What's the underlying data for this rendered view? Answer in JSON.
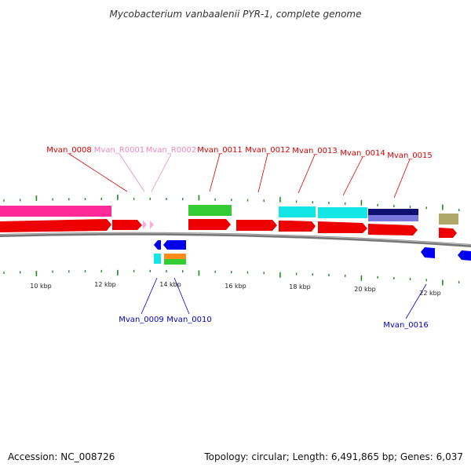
{
  "title": "Mycobacterium vanbaalenii PYR-1, complete genome",
  "footer": {
    "accession": "Accession: NC_008726",
    "topology": "Topology: circular; Length: 6,491,865 bp; Genes: 6,037"
  },
  "colors": {
    "plus_label": "#dd0000",
    "rna_label": "#ee88bb",
    "minus_label": "#0000cc",
    "tick": "#228b22",
    "backbone": "#777777"
  },
  "scale": {
    "tick_labels": [
      "10 kbp",
      "12 kbp",
      "14 kbp",
      "16 kbp",
      "18 kbp",
      "20 kbp",
      "22 kbp"
    ]
  },
  "gene_labels": {
    "top": [
      "Mvan_0008",
      "Mvan_R0001",
      "Mvan_R0002",
      "Mvan_0011",
      "Mvan_0012",
      "Mvan_0013",
      "Mvan_0014",
      "Mvan_0015"
    ],
    "bottom": [
      "Mvan_0009",
      "Mvan_0010",
      "Mvan_0016"
    ]
  }
}
